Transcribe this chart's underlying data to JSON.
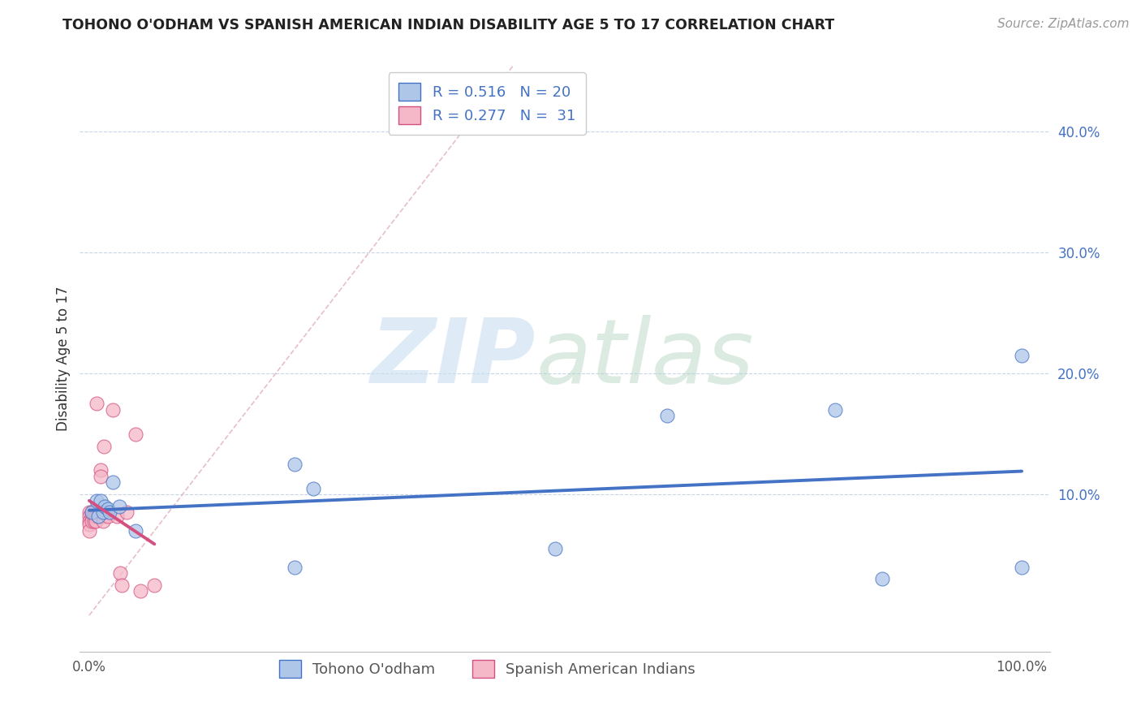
{
  "title": "TOHONO O'ODHAM VS SPANISH AMERICAN INDIAN DISABILITY AGE 5 TO 17 CORRELATION CHART",
  "source": "Source: ZipAtlas.com",
  "ylabel": "Disability Age 5 to 17",
  "xlim": [
    -0.02,
    1.05
  ],
  "ylim": [
    -0.02,
    0.46
  ],
  "xticks": [
    0.0,
    0.2,
    0.4,
    0.6,
    0.8,
    1.0
  ],
  "xticklabels": [
    "0.0%",
    "",
    "",
    "",
    "",
    "100.0%"
  ],
  "yticks": [
    0.0,
    0.1,
    0.2,
    0.3,
    0.4
  ],
  "yticklabels": [
    "",
    "10.0%",
    "20.0%",
    "30.0%",
    "40.0%"
  ],
  "legend_label1": "Tohono O'odham",
  "legend_label2": "Spanish American Indians",
  "R1": 0.516,
  "N1": 20,
  "R2": 0.277,
  "N2": 31,
  "color1": "#aec6e8",
  "color2": "#f4b8c8",
  "line_color1": "#4472c4",
  "line_color2": "#d45080",
  "diag_color": "#e0b0b8",
  "tohono_x": [
    0.003,
    0.008,
    0.01,
    0.012,
    0.015,
    0.017,
    0.02,
    0.022,
    0.025,
    0.032,
    0.05,
    0.22,
    0.24,
    0.5,
    0.62,
    0.8,
    1.0,
    1.0,
    0.22,
    0.85
  ],
  "tohono_y": [
    0.085,
    0.095,
    0.082,
    0.095,
    0.085,
    0.09,
    0.088,
    0.085,
    0.11,
    0.09,
    0.07,
    0.125,
    0.105,
    0.055,
    0.165,
    0.17,
    0.215,
    0.04,
    0.04,
    0.03
  ],
  "spanish_x": [
    0.0,
    0.0,
    0.0,
    0.0,
    0.0,
    0.003,
    0.003,
    0.003,
    0.005,
    0.005,
    0.005,
    0.007,
    0.007,
    0.008,
    0.01,
    0.01,
    0.012,
    0.012,
    0.015,
    0.015,
    0.016,
    0.02,
    0.02,
    0.025,
    0.03,
    0.033,
    0.035,
    0.04,
    0.05,
    0.055,
    0.07
  ],
  "spanish_y": [
    0.085,
    0.082,
    0.078,
    0.075,
    0.07,
    0.085,
    0.082,
    0.078,
    0.085,
    0.082,
    0.078,
    0.082,
    0.078,
    0.175,
    0.085,
    0.082,
    0.12,
    0.115,
    0.082,
    0.078,
    0.14,
    0.085,
    0.082,
    0.17,
    0.082,
    0.035,
    0.025,
    0.085,
    0.15,
    0.02,
    0.025
  ]
}
